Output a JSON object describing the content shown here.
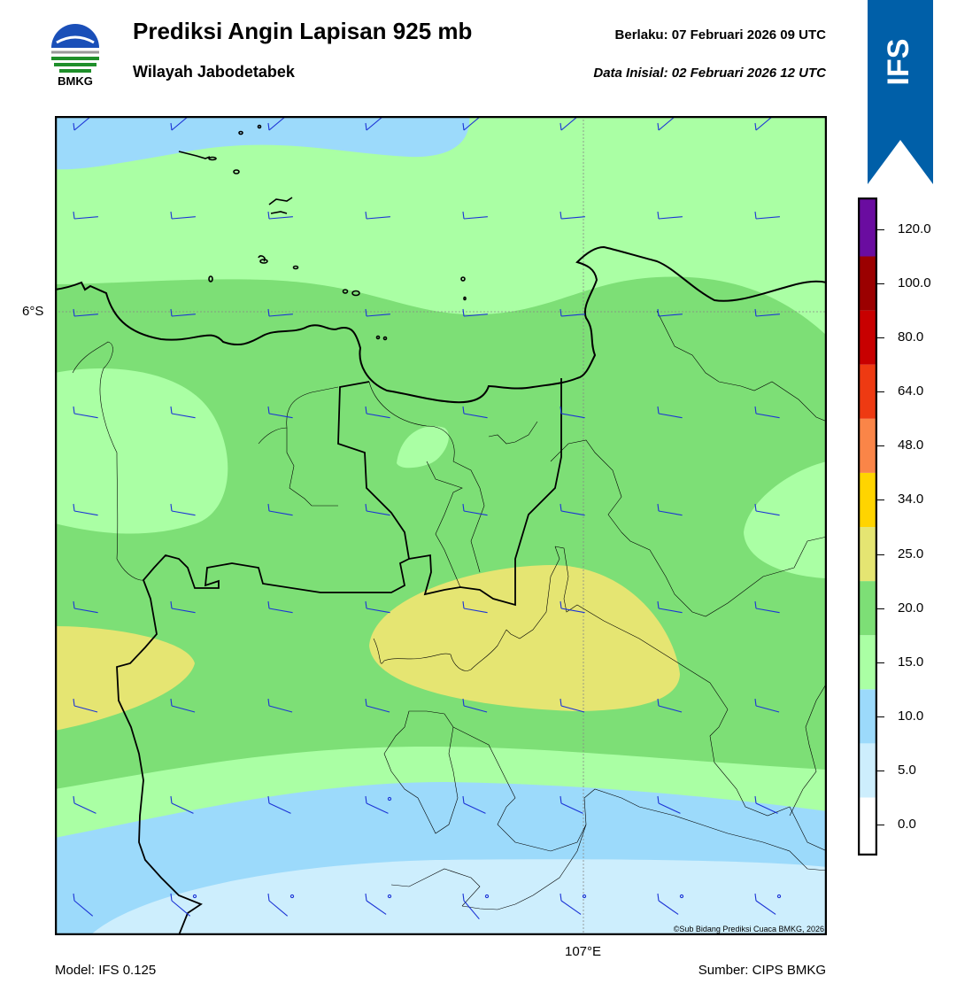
{
  "header": {
    "title": "Prediksi Angin Lapisan 925 mb",
    "subtitle": "Wilayah Jabodetabek",
    "valid_label": "Berlaku:  07 Februari 2026 09 UTC",
    "init_label": "Data Inisial:  02 Februari 2026 12 UTC",
    "logo_text": "BMKG",
    "badge": "IFS"
  },
  "map": {
    "lat_label": "6°S",
    "lon_label": "107°E",
    "copyright": "©Sub Bidang Prediksi Cuaca BMKG, 2026",
    "zone_colors": {
      "c0_5": "#cdeefd",
      "c5_10": "#9cdafb",
      "c10_15": "#aaffa4",
      "c15_20": "#7ddf76",
      "c20_25": "#e5e572"
    },
    "barb_color": "#1c34d6"
  },
  "colorbar": {
    "ticks": [
      "0.0",
      "5.0",
      "10.0",
      "15.0",
      "20.0",
      "25.0",
      "34.0",
      "48.0",
      "64.0",
      "80.0",
      "100.0",
      "120.0"
    ],
    "colors": [
      "#ffffff",
      "#cdeefd",
      "#9cdafb",
      "#aaffa4",
      "#7ddf76",
      "#e5e572",
      "#ffd400",
      "#fa8548",
      "#ee3a12",
      "#c80000",
      "#9b0000",
      "#6a0ca0",
      "#ff6b8a"
    ]
  },
  "footer": {
    "model": "Model: IFS 0.125",
    "source": "Sumber: CIPS BMKG"
  }
}
